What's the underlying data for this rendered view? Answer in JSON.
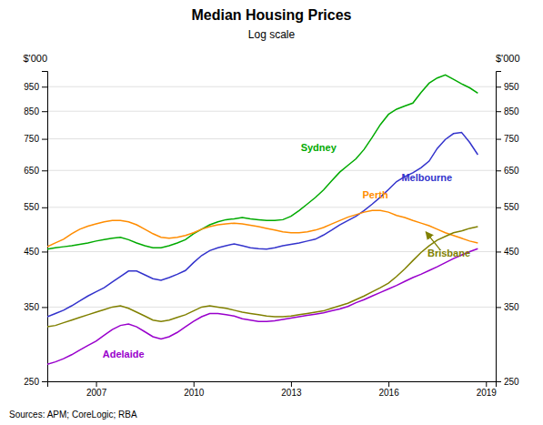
{
  "chart_data": {
    "type": "line",
    "title": "Median Housing Prices",
    "subtitle": "Log scale",
    "source": "Sources:  APM; CoreLogic; RBA",
    "ylabel": "$'000",
    "y2label": "$'000",
    "log": "y",
    "grid": true,
    "xlim": [
      2005.5,
      2019.3
    ],
    "xticks": [
      2007,
      2010,
      2013,
      2016,
      2019
    ],
    "ylim": [
      250,
      1020
    ],
    "yticks": [
      250,
      350,
      450,
      550,
      650,
      750,
      850,
      950
    ],
    "y2lim": [
      250,
      1020
    ],
    "y2ticks": [
      250,
      350,
      450,
      550,
      650,
      750,
      850,
      950
    ],
    "x": [
      2005.5,
      2005.75,
      2006.0,
      2006.25,
      2006.5,
      2006.75,
      2007.0,
      2007.25,
      2007.5,
      2007.75,
      2008.0,
      2008.25,
      2008.5,
      2008.75,
      2009.0,
      2009.25,
      2009.5,
      2009.75,
      2010.0,
      2010.25,
      2010.5,
      2010.75,
      2011.0,
      2011.25,
      2011.5,
      2011.75,
      2012.0,
      2012.25,
      2012.5,
      2012.75,
      2013.0,
      2013.25,
      2013.5,
      2013.75,
      2014.0,
      2014.25,
      2014.5,
      2014.75,
      2015.0,
      2015.25,
      2015.5,
      2015.75,
      2016.0,
      2016.25,
      2016.5,
      2016.75,
      2017.0,
      2017.25,
      2017.5,
      2017.75,
      2018.0,
      2018.25,
      2018.5,
      2018.75
    ],
    "series": [
      {
        "name": "Sydney",
        "color": "#00AA00",
        "values": [
          455,
          458,
          460,
          462,
          465,
          468,
          472,
          475,
          478,
          480,
          475,
          468,
          462,
          458,
          458,
          462,
          468,
          475,
          488,
          498,
          508,
          515,
          520,
          522,
          525,
          522,
          520,
          518,
          518,
          520,
          528,
          542,
          558,
          575,
          595,
          620,
          645,
          665,
          685,
          715,
          755,
          800,
          838,
          858,
          870,
          882,
          925,
          965,
          988,
          1002,
          982,
          962,
          945,
          922
        ]
      },
      {
        "name": "Melbourne",
        "color": "#3333CC",
        "values": [
          335,
          340,
          345,
          352,
          360,
          368,
          375,
          382,
          392,
          402,
          412,
          412,
          405,
          398,
          395,
          400,
          406,
          413,
          428,
          442,
          452,
          458,
          462,
          466,
          462,
          458,
          456,
          455,
          458,
          462,
          465,
          468,
          472,
          476,
          485,
          496,
          508,
          518,
          528,
          542,
          558,
          576,
          596,
          618,
          632,
          643,
          658,
          678,
          718,
          748,
          768,
          772,
          738,
          698
        ]
      },
      {
        "name": "Perth",
        "color": "#FF8C00",
        "values": [
          460,
          468,
          476,
          488,
          498,
          505,
          510,
          515,
          518,
          518,
          515,
          508,
          498,
          488,
          480,
          478,
          480,
          484,
          490,
          498,
          504,
          508,
          510,
          512,
          510,
          507,
          504,
          500,
          496,
          492,
          490,
          490,
          492,
          496,
          502,
          510,
          518,
          526,
          532,
          538,
          542,
          542,
          538,
          530,
          525,
          518,
          512,
          506,
          498,
          490,
          484,
          478,
          472,
          468
        ]
      },
      {
        "name": "Brisbane",
        "color": "#808000",
        "values": [
          320,
          322,
          326,
          330,
          334,
          338,
          342,
          346,
          350,
          352,
          348,
          342,
          336,
          330,
          328,
          330,
          334,
          338,
          344,
          350,
          352,
          350,
          348,
          345,
          342,
          340,
          338,
          336,
          335,
          335,
          336,
          338,
          340,
          342,
          344,
          348,
          352,
          356,
          362,
          368,
          375,
          382,
          390,
          402,
          416,
          432,
          448,
          462,
          474,
          482,
          490,
          494,
          500,
          504
        ]
      },
      {
        "name": "Adelaide",
        "color": "#9900CC",
        "values": [
          270,
          273,
          277,
          282,
          288,
          294,
          300,
          308,
          316,
          322,
          324,
          320,
          313,
          306,
          303,
          306,
          312,
          320,
          328,
          335,
          340,
          340,
          338,
          336,
          332,
          330,
          328,
          328,
          329,
          331,
          333,
          335,
          337,
          339,
          341,
          344,
          347,
          351,
          357,
          362,
          368,
          374,
          380,
          386,
          393,
          400,
          406,
          413,
          420,
          428,
          436,
          443,
          450,
          456
        ]
      }
    ],
    "annotations": [
      {
        "text": "Sydney",
        "x": 2013.3,
        "y": 710,
        "color": "#00AA00"
      },
      {
        "text": "Melbourne",
        "x": 2016.4,
        "y": 620,
        "color": "#3333CC"
      },
      {
        "text": "Perth",
        "x": 2015.2,
        "y": 572,
        "color": "#FF8C00"
      },
      {
        "text": "Brisbane",
        "x": 2017.2,
        "y": 440,
        "color": "#808000"
      },
      {
        "text": "Adelaide",
        "x": 2007.2,
        "y": 278,
        "color": "#9900CC"
      }
    ],
    "arrows": [
      {
        "x_start": 2017.6,
        "y_start": 453,
        "x_end": 2017.15,
        "y_end": 492,
        "color": "#808000"
      }
    ]
  }
}
